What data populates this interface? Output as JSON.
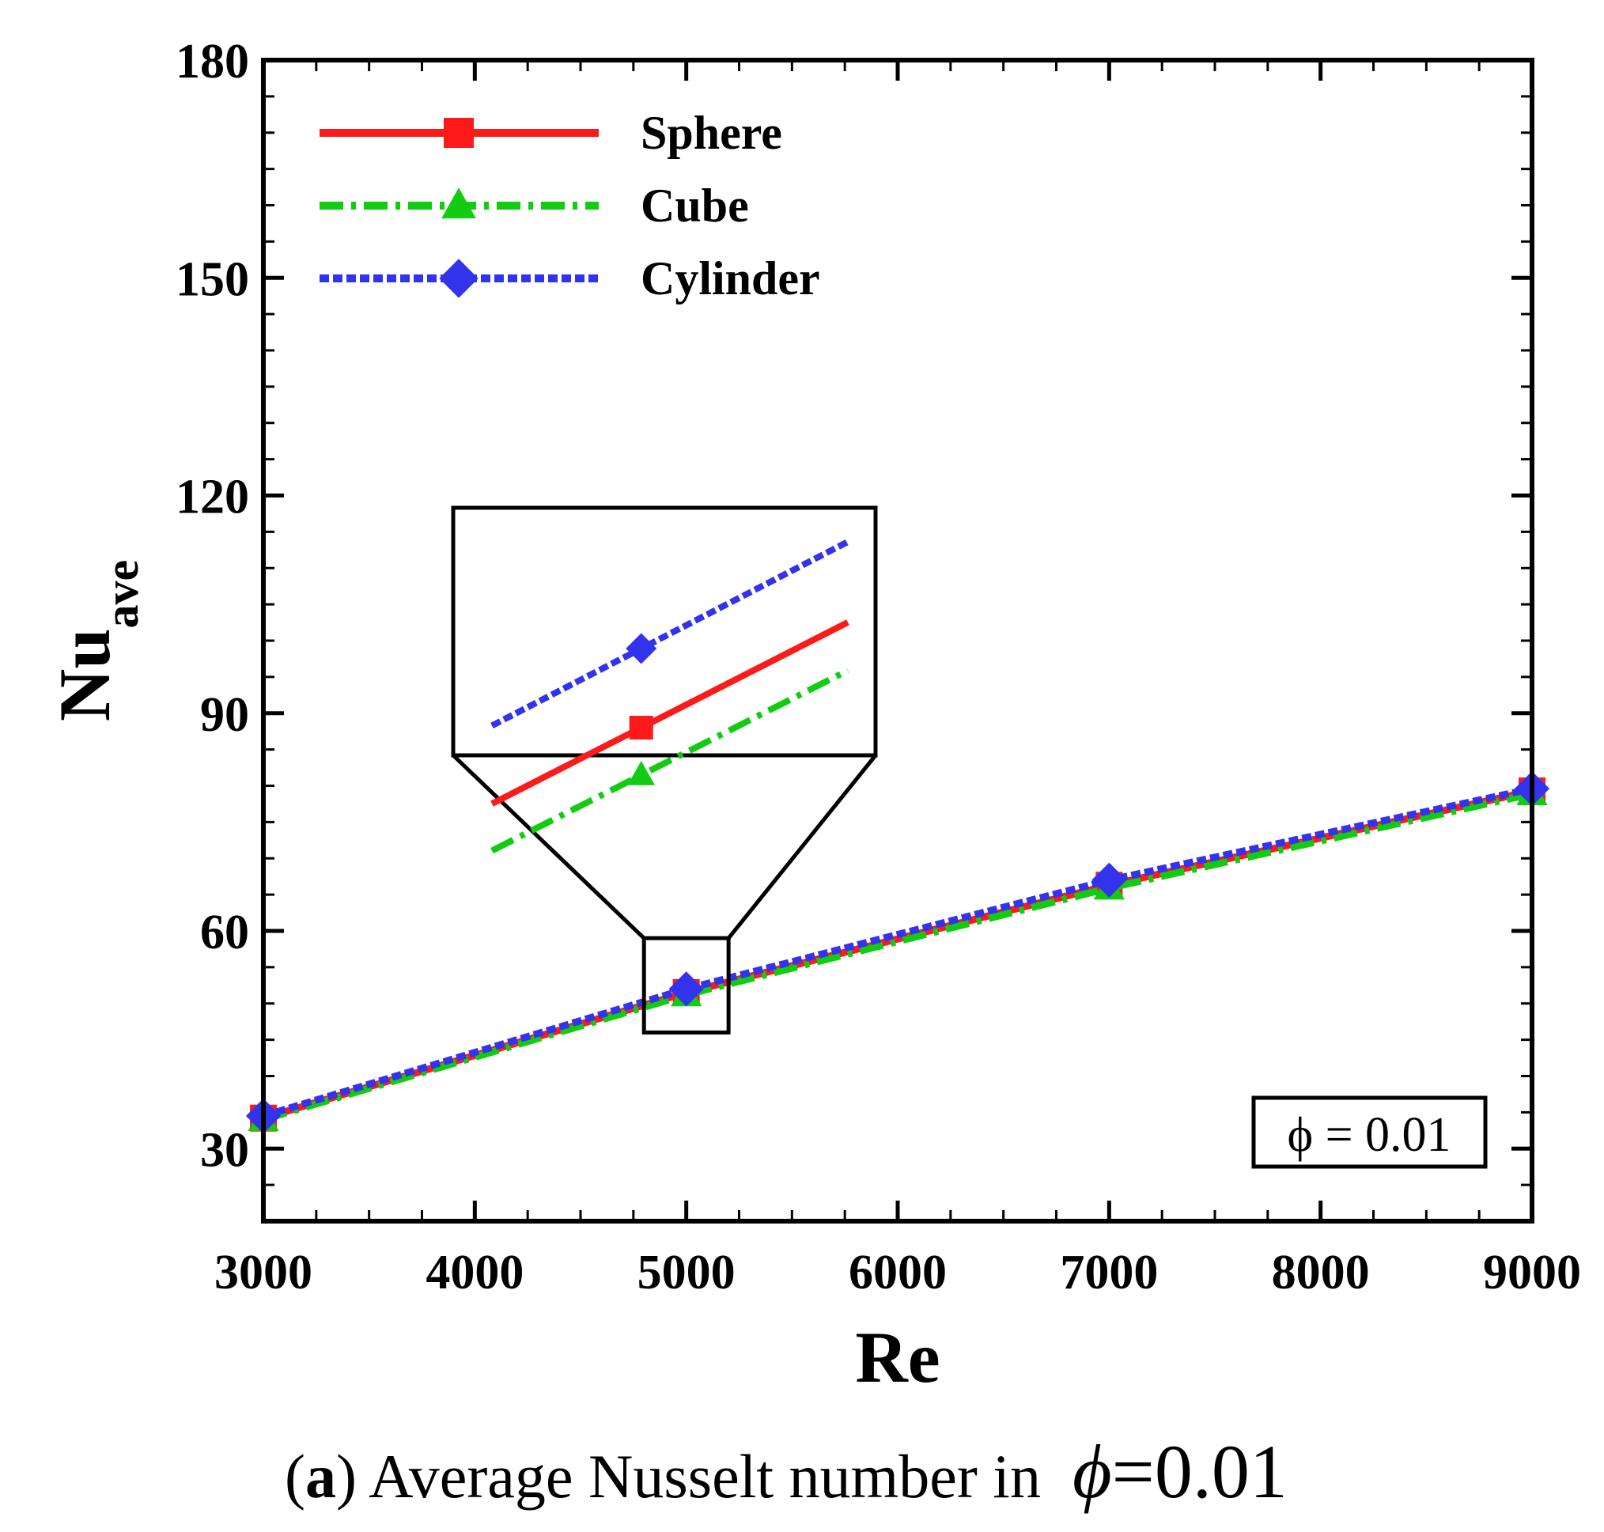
{
  "chart_data": {
    "type": "line",
    "title": "",
    "xlabel": "Re",
    "ylabel_main": "Nu",
    "ylabel_sub": "ave",
    "xlim": [
      3000,
      9000
    ],
    "ylim": [
      20,
      180
    ],
    "x_ticks": [
      3000,
      4000,
      5000,
      6000,
      7000,
      8000,
      9000
    ],
    "y_ticks": [
      30,
      60,
      90,
      120,
      150,
      180
    ],
    "x": [
      3000,
      5000,
      7000,
      9000
    ],
    "series": [
      {
        "name": "Sphere",
        "color": "#ff1a1a",
        "dash": "solid",
        "marker": "square",
        "values": [
          34.2,
          51.5,
          66.3,
          79.3
        ]
      },
      {
        "name": "Cube",
        "color": "#11cc11",
        "dash": "dashdot",
        "marker": "triangle",
        "values": [
          34.0,
          51.2,
          65.9,
          78.9
        ]
      },
      {
        "name": "Cylinder",
        "color": "#3333ee",
        "dash": "dotted",
        "marker": "diamond",
        "values": [
          34.5,
          52.0,
          67.0,
          79.6
        ]
      }
    ],
    "legend_position": "top-left",
    "annotation": "ϕ = 0.01",
    "inset": {
      "description_zoom_x": [
        4800,
        5200
      ],
      "description_zoom_y": [
        46,
        59
      ]
    }
  },
  "caption": {
    "label": "a",
    "open_paren": "(",
    "close_paren": ")",
    "text": " Average Nusselt number in",
    "symbol": "ϕ",
    "value": "=0.01"
  }
}
